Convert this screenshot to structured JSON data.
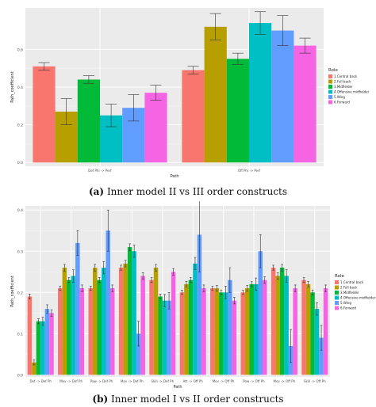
{
  "colors": {
    "panel": "#ebebeb",
    "grid_major": "#ffffff",
    "grid_minor": "#f4f4f4",
    "role_palette": [
      "#f8766d",
      "#b79f00",
      "#00ba38",
      "#00bfc4",
      "#619cff",
      "#f564e3"
    ]
  },
  "captions": {
    "a_tag": "(a)",
    "a_text": "Inner model II vs III order constructs",
    "b_tag": "(b)",
    "b_text": "Inner model I vs II order constructs"
  },
  "chart_data": [
    {
      "type": "bar",
      "xlabel": "Path",
      "ylabel": "Path_coefficient",
      "ylim": [
        -0.02,
        0.82
      ],
      "yticks": [
        "0.0",
        "0.2",
        "0.4",
        "0.6"
      ],
      "ytick_values": [
        0.0,
        0.2,
        0.4,
        0.6
      ],
      "grid": true,
      "legend_position": "right",
      "legend_title": "Role",
      "categories": [
        "Def Phi -> Perf",
        "Off Phi -> Perf"
      ],
      "series": [
        {
          "name": "1.Central back",
          "values": [
            0.51,
            0.49
          ],
          "err": [
            0.02,
            0.02
          ]
        },
        {
          "name": "2.Full back",
          "values": [
            0.27,
            0.72
          ],
          "err": [
            0.07,
            0.07
          ]
        },
        {
          "name": "3.Midfielder",
          "values": [
            0.44,
            0.55
          ],
          "err": [
            0.02,
            0.03
          ]
        },
        {
          "name": "4.Offensive midfielder",
          "values": [
            0.25,
            0.74
          ],
          "err": [
            0.06,
            0.06
          ]
        },
        {
          "name": "5.Wing",
          "values": [
            0.29,
            0.7
          ],
          "err": [
            0.07,
            0.08
          ]
        },
        {
          "name": "6.Forward",
          "values": [
            0.37,
            0.62
          ],
          "err": [
            0.04,
            0.04
          ]
        }
      ]
    },
    {
      "type": "bar",
      "xlabel": "Path",
      "ylabel": "Path_coefficient",
      "ylim": [
        -0.005,
        0.41
      ],
      "yticks": [
        "0.0",
        "0.1",
        "0.2",
        "0.3",
        "0.4"
      ],
      "ytick_values": [
        0.0,
        0.1,
        0.2,
        0.3,
        0.4
      ],
      "grid": true,
      "legend_position": "right",
      "legend_title": "Role",
      "categories": [
        "Def -> Def Ph",
        "Mov -> Def Ph",
        "Pow -> Def Ph",
        "Mov -> Def Ph",
        "Skill -> Def Ph",
        "Att -> Off Ph",
        "Mov -> Off Ph",
        "Pow -> Off Ph",
        "Mov -> Off Ph",
        "Skill -> Off Ph"
      ],
      "series": [
        {
          "name": "1.Central back",
          "values": [
            0.19,
            0.21,
            0.21,
            0.26,
            0.23,
            0.2,
            0.21,
            0.2,
            0.26,
            0.23
          ],
          "err": [
            0.006,
            0.005,
            0.005,
            0.006,
            0.006,
            0.005,
            0.005,
            0.005,
            0.006,
            0.006
          ]
        },
        {
          "name": "2.Full back",
          "values": [
            0.03,
            0.26,
            0.26,
            0.27,
            0.26,
            0.22,
            0.21,
            0.21,
            0.24,
            0.22
          ],
          "err": [
            0.006,
            0.008,
            0.008,
            0.008,
            0.008,
            0.007,
            0.007,
            0.007,
            0.008,
            0.007
          ]
        },
        {
          "name": "3.Midfielder",
          "values": [
            0.13,
            0.23,
            0.23,
            0.31,
            0.19,
            0.23,
            0.2,
            0.22,
            0.26,
            0.2
          ],
          "err": [
            0.006,
            0.006,
            0.006,
            0.008,
            0.006,
            0.006,
            0.006,
            0.006,
            0.008,
            0.006
          ]
        },
        {
          "name": "4.Offensive midfielder",
          "values": [
            0.13,
            0.24,
            0.26,
            0.3,
            0.18,
            0.27,
            0.2,
            0.22,
            0.24,
            0.16
          ],
          "err": [
            0.01,
            0.015,
            0.015,
            0.015,
            0.015,
            0.015,
            0.015,
            0.015,
            0.015,
            0.015
          ]
        },
        {
          "name": "5.Wing",
          "values": [
            0.16,
            0.32,
            0.35,
            0.1,
            0.18,
            0.34,
            0.23,
            0.3,
            0.07,
            0.09
          ],
          "err": [
            0.01,
            0.03,
            0.05,
            0.03,
            0.02,
            0.09,
            0.03,
            0.04,
            0.04,
            0.03
          ]
        },
        {
          "name": "6.Forward",
          "values": [
            0.15,
            0.21,
            0.21,
            0.24,
            0.25,
            0.21,
            0.18,
            0.23,
            0.21,
            0.21
          ],
          "err": [
            0.008,
            0.008,
            0.008,
            0.008,
            0.008,
            0.008,
            0.008,
            0.008,
            0.008,
            0.008
          ]
        }
      ]
    }
  ]
}
